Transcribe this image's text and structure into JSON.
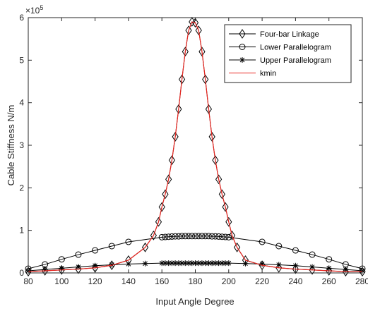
{
  "chart_data": {
    "type": "line",
    "xlabel": "Input Angle Degree",
    "ylabel": "Cable Stiffness N/m",
    "exponent_prefix": "×10",
    "exponent_power": "5",
    "xlim": [
      80,
      280
    ],
    "ylim": [
      0,
      6
    ],
    "xticks": [
      80,
      100,
      120,
      140,
      160,
      180,
      200,
      220,
      240,
      260,
      280
    ],
    "yticks": [
      0,
      1,
      2,
      3,
      4,
      5,
      6
    ],
    "legend_position": "top-right",
    "grid": false,
    "series": [
      {
        "name": "Four-bar Linkage",
        "marker": "diamond",
        "color": "#000000",
        "x": [
          80,
          90,
          100,
          110,
          120,
          130,
          140,
          150,
          155,
          158,
          160,
          162,
          164,
          166,
          168,
          170,
          172,
          174,
          176,
          178,
          180,
          182,
          184,
          186,
          188,
          190,
          192,
          194,
          196,
          198,
          200,
          202,
          205,
          210,
          220,
          230,
          240,
          250,
          260,
          270,
          280
        ],
        "y": [
          0.03,
          0.05,
          0.07,
          0.09,
          0.12,
          0.18,
          0.3,
          0.6,
          0.88,
          1.2,
          1.55,
          1.85,
          2.2,
          2.65,
          3.2,
          3.85,
          4.55,
          5.2,
          5.7,
          5.9,
          5.88,
          5.7,
          5.2,
          4.55,
          3.85,
          3.2,
          2.65,
          2.2,
          1.85,
          1.55,
          1.2,
          0.88,
          0.6,
          0.3,
          0.18,
          0.12,
          0.09,
          0.07,
          0.05,
          0.03,
          0.03
        ]
      },
      {
        "name": "Lower Parallelogram",
        "marker": "circle",
        "color": "#000000",
        "x": [
          80,
          90,
          100,
          110,
          120,
          130,
          140,
          160,
          162,
          164,
          166,
          168,
          170,
          172,
          174,
          176,
          178,
          180,
          182,
          184,
          186,
          188,
          190,
          192,
          194,
          196,
          198,
          200,
          220,
          230,
          240,
          250,
          260,
          270,
          280
        ],
        "y": [
          0.1,
          0.2,
          0.32,
          0.43,
          0.53,
          0.63,
          0.73,
          0.84,
          0.845,
          0.85,
          0.855,
          0.86,
          0.86,
          0.865,
          0.865,
          0.865,
          0.865,
          0.865,
          0.865,
          0.865,
          0.865,
          0.865,
          0.86,
          0.86,
          0.855,
          0.85,
          0.845,
          0.84,
          0.73,
          0.63,
          0.53,
          0.43,
          0.32,
          0.2,
          0.1
        ]
      },
      {
        "name": "Upper Parallelogram",
        "marker": "asterisk",
        "color": "#000000",
        "x": [
          80,
          90,
          100,
          110,
          120,
          130,
          140,
          150,
          160,
          162,
          164,
          166,
          168,
          170,
          172,
          174,
          176,
          178,
          180,
          182,
          184,
          186,
          188,
          190,
          192,
          194,
          196,
          198,
          200,
          210,
          220,
          230,
          240,
          250,
          260,
          270,
          280
        ],
        "y": [
          0.05,
          0.08,
          0.11,
          0.14,
          0.17,
          0.19,
          0.21,
          0.22,
          0.23,
          0.23,
          0.23,
          0.23,
          0.23,
          0.23,
          0.23,
          0.23,
          0.23,
          0.23,
          0.23,
          0.23,
          0.23,
          0.23,
          0.23,
          0.23,
          0.23,
          0.23,
          0.23,
          0.23,
          0.23,
          0.22,
          0.21,
          0.19,
          0.17,
          0.14,
          0.11,
          0.08,
          0.05
        ]
      },
      {
        "name": "kmin",
        "marker": "none",
        "color": "#e8251f",
        "x": [
          80,
          90,
          100,
          110,
          120,
          130,
          140,
          150,
          155,
          158,
          160,
          162,
          164,
          166,
          168,
          170,
          172,
          174,
          176,
          178,
          180,
          182,
          184,
          186,
          188,
          190,
          192,
          194,
          196,
          198,
          200,
          202,
          205,
          210,
          220,
          230,
          240,
          250,
          260,
          270,
          280
        ],
        "y": [
          0.03,
          0.05,
          0.07,
          0.09,
          0.12,
          0.18,
          0.3,
          0.6,
          0.88,
          1.2,
          1.55,
          1.85,
          2.2,
          2.65,
          3.2,
          3.85,
          4.55,
          5.2,
          5.7,
          5.9,
          5.88,
          5.7,
          5.2,
          4.55,
          3.85,
          3.2,
          2.65,
          2.2,
          1.85,
          1.55,
          1.2,
          0.88,
          0.6,
          0.3,
          0.18,
          0.12,
          0.09,
          0.07,
          0.05,
          0.03,
          0.03
        ]
      }
    ]
  }
}
